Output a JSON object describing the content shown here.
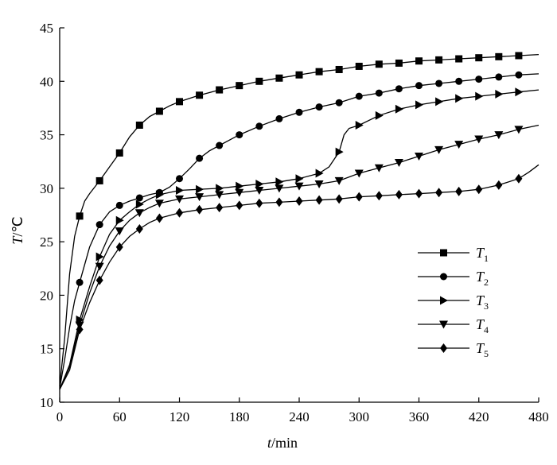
{
  "chart_data": {
    "type": "line",
    "xlabel_italic": "t",
    "xlabel_unit": "/min",
    "ylabel_italic": "T",
    "ylabel_unit": "/℃",
    "xlim": [
      0,
      480
    ],
    "ylim": [
      10,
      45
    ],
    "xticks": [
      0,
      60,
      120,
      180,
      240,
      300,
      360,
      420,
      480
    ],
    "yticks": [
      10,
      15,
      20,
      25,
      30,
      35,
      40,
      45
    ],
    "grid": false,
    "legend_position": "bottom-right",
    "series": [
      {
        "name": "T1",
        "label_main": "T",
        "label_sub": "1",
        "marker": "square",
        "line": [
          [
            0,
            11.5
          ],
          [
            5,
            16
          ],
          [
            10,
            22
          ],
          [
            15,
            25.5
          ],
          [
            20,
            27.4
          ],
          [
            25,
            28.8
          ],
          [
            30,
            29.5
          ],
          [
            40,
            30.7
          ],
          [
            50,
            32
          ],
          [
            60,
            33.3
          ],
          [
            70,
            34.8
          ],
          [
            80,
            35.9
          ],
          [
            90,
            36.7
          ],
          [
            100,
            37.2
          ],
          [
            110,
            37.7
          ],
          [
            120,
            38.1
          ],
          [
            140,
            38.7
          ],
          [
            160,
            39.2
          ],
          [
            180,
            39.6
          ],
          [
            200,
            40.0
          ],
          [
            220,
            40.3
          ],
          [
            240,
            40.6
          ],
          [
            260,
            40.9
          ],
          [
            280,
            41.1
          ],
          [
            300,
            41.4
          ],
          [
            320,
            41.6
          ],
          [
            340,
            41.7
          ],
          [
            360,
            41.9
          ],
          [
            380,
            42.0
          ],
          [
            400,
            42.1
          ],
          [
            420,
            42.2
          ],
          [
            440,
            42.3
          ],
          [
            460,
            42.4
          ],
          [
            480,
            42.5
          ]
        ],
        "markers": [
          [
            20,
            27.4
          ],
          [
            40,
            30.7
          ],
          [
            60,
            33.3
          ],
          [
            80,
            35.9
          ],
          [
            100,
            37.2
          ],
          [
            120,
            38.1
          ],
          [
            140,
            38.7
          ],
          [
            160,
            39.2
          ],
          [
            180,
            39.6
          ],
          [
            200,
            40.0
          ],
          [
            220,
            40.3
          ],
          [
            240,
            40.6
          ],
          [
            260,
            40.9
          ],
          [
            280,
            41.1
          ],
          [
            300,
            41.4
          ],
          [
            320,
            41.6
          ],
          [
            340,
            41.7
          ],
          [
            360,
            41.9
          ],
          [
            380,
            42.0
          ],
          [
            400,
            42.1
          ],
          [
            420,
            42.2
          ],
          [
            440,
            42.3
          ],
          [
            460,
            42.4
          ]
        ]
      },
      {
        "name": "T2",
        "label_main": "T",
        "label_sub": "2",
        "marker": "circle",
        "line": [
          [
            0,
            11.3
          ],
          [
            5,
            14
          ],
          [
            10,
            17
          ],
          [
            15,
            19.5
          ],
          [
            20,
            21.2
          ],
          [
            30,
            24.5
          ],
          [
            40,
            26.6
          ],
          [
            50,
            27.8
          ],
          [
            60,
            28.4
          ],
          [
            70,
            28.8
          ],
          [
            80,
            29.1
          ],
          [
            90,
            29.4
          ],
          [
            100,
            29.6
          ],
          [
            110,
            30.1
          ],
          [
            120,
            30.9
          ],
          [
            130,
            31.8
          ],
          [
            140,
            32.8
          ],
          [
            150,
            33.5
          ],
          [
            160,
            34.0
          ],
          [
            170,
            34.5
          ],
          [
            180,
            35.0
          ],
          [
            200,
            35.8
          ],
          [
            220,
            36.5
          ],
          [
            240,
            37.1
          ],
          [
            260,
            37.6
          ],
          [
            280,
            38.0
          ],
          [
            300,
            38.6
          ],
          [
            320,
            38.9
          ],
          [
            340,
            39.3
          ],
          [
            360,
            39.6
          ],
          [
            380,
            39.8
          ],
          [
            400,
            40.0
          ],
          [
            420,
            40.2
          ],
          [
            440,
            40.4
          ],
          [
            460,
            40.6
          ],
          [
            480,
            40.7
          ]
        ],
        "markers": [
          [
            20,
            21.2
          ],
          [
            40,
            26.6
          ],
          [
            60,
            28.4
          ],
          [
            80,
            29.1
          ],
          [
            100,
            29.6
          ],
          [
            120,
            30.9
          ],
          [
            140,
            32.8
          ],
          [
            160,
            34.0
          ],
          [
            180,
            35.0
          ],
          [
            200,
            35.8
          ],
          [
            220,
            36.5
          ],
          [
            240,
            37.1
          ],
          [
            260,
            37.6
          ],
          [
            280,
            38.0
          ],
          [
            300,
            38.6
          ],
          [
            320,
            38.9
          ],
          [
            340,
            39.3
          ],
          [
            360,
            39.6
          ],
          [
            380,
            39.8
          ],
          [
            400,
            40.0
          ],
          [
            420,
            40.2
          ],
          [
            440,
            40.4
          ],
          [
            460,
            40.6
          ]
        ]
      },
      {
        "name": "T3",
        "label_main": "T",
        "label_sub": "3",
        "marker": "triangle-right",
        "line": [
          [
            0,
            11.2
          ],
          [
            10,
            13.5
          ],
          [
            20,
            17.7
          ],
          [
            30,
            20.8
          ],
          [
            40,
            23.6
          ],
          [
            50,
            25.7
          ],
          [
            60,
            27.0
          ],
          [
            70,
            27.8
          ],
          [
            80,
            28.5
          ],
          [
            90,
            29.0
          ],
          [
            100,
            29.4
          ],
          [
            120,
            29.8
          ],
          [
            140,
            29.9
          ],
          [
            160,
            30.0
          ],
          [
            180,
            30.2
          ],
          [
            200,
            30.4
          ],
          [
            220,
            30.6
          ],
          [
            240,
            30.9
          ],
          [
            260,
            31.4
          ],
          [
            270,
            32.0
          ],
          [
            280,
            33.4
          ],
          [
            285,
            35.0
          ],
          [
            290,
            35.6
          ],
          [
            300,
            35.9
          ],
          [
            320,
            36.8
          ],
          [
            340,
            37.4
          ],
          [
            360,
            37.8
          ],
          [
            380,
            38.1
          ],
          [
            400,
            38.4
          ],
          [
            420,
            38.6
          ],
          [
            440,
            38.8
          ],
          [
            460,
            39.0
          ],
          [
            480,
            39.2
          ]
        ],
        "markers": [
          [
            20,
            17.7
          ],
          [
            40,
            23.6
          ],
          [
            60,
            27.0
          ],
          [
            80,
            28.5
          ],
          [
            100,
            29.4
          ],
          [
            120,
            29.8
          ],
          [
            140,
            29.9
          ],
          [
            160,
            30.0
          ],
          [
            180,
            30.2
          ],
          [
            200,
            30.4
          ],
          [
            220,
            30.6
          ],
          [
            240,
            30.9
          ],
          [
            260,
            31.4
          ],
          [
            280,
            33.4
          ],
          [
            300,
            35.9
          ],
          [
            320,
            36.8
          ],
          [
            340,
            37.4
          ],
          [
            360,
            37.8
          ],
          [
            380,
            38.1
          ],
          [
            400,
            38.4
          ],
          [
            420,
            38.6
          ],
          [
            440,
            38.8
          ],
          [
            460,
            39.0
          ]
        ]
      },
      {
        "name": "T4",
        "label_main": "T",
        "label_sub": "4",
        "marker": "triangle-down",
        "line": [
          [
            0,
            11.2
          ],
          [
            10,
            13.3
          ],
          [
            20,
            17.2
          ],
          [
            30,
            20.2
          ],
          [
            40,
            22.7
          ],
          [
            50,
            24.6
          ],
          [
            60,
            26.0
          ],
          [
            70,
            27.0
          ],
          [
            80,
            27.7
          ],
          [
            90,
            28.2
          ],
          [
            100,
            28.6
          ],
          [
            120,
            29.0
          ],
          [
            140,
            29.2
          ],
          [
            160,
            29.4
          ],
          [
            180,
            29.6
          ],
          [
            200,
            29.8
          ],
          [
            220,
            30.0
          ],
          [
            240,
            30.2
          ],
          [
            260,
            30.4
          ],
          [
            280,
            30.7
          ],
          [
            300,
            31.4
          ],
          [
            320,
            31.9
          ],
          [
            340,
            32.4
          ],
          [
            360,
            33.0
          ],
          [
            380,
            33.6
          ],
          [
            400,
            34.1
          ],
          [
            420,
            34.6
          ],
          [
            440,
            35.0
          ],
          [
            460,
            35.5
          ],
          [
            480,
            35.9
          ]
        ],
        "markers": [
          [
            20,
            17.2
          ],
          [
            40,
            22.7
          ],
          [
            60,
            26.0
          ],
          [
            80,
            27.7
          ],
          [
            100,
            28.6
          ],
          [
            120,
            29.0
          ],
          [
            140,
            29.2
          ],
          [
            160,
            29.4
          ],
          [
            180,
            29.6
          ],
          [
            200,
            29.8
          ],
          [
            220,
            30.0
          ],
          [
            240,
            30.2
          ],
          [
            260,
            30.4
          ],
          [
            280,
            30.7
          ],
          [
            300,
            31.4
          ],
          [
            320,
            31.9
          ],
          [
            340,
            32.4
          ],
          [
            360,
            33.0
          ],
          [
            380,
            33.6
          ],
          [
            400,
            34.1
          ],
          [
            420,
            34.6
          ],
          [
            440,
            35.0
          ],
          [
            460,
            35.5
          ]
        ]
      },
      {
        "name": "T5",
        "label_main": "T",
        "label_sub": "5",
        "marker": "diamond",
        "line": [
          [
            0,
            11.2
          ],
          [
            10,
            13.0
          ],
          [
            20,
            16.8
          ],
          [
            30,
            19.3
          ],
          [
            40,
            21.4
          ],
          [
            50,
            23.1
          ],
          [
            60,
            24.5
          ],
          [
            70,
            25.5
          ],
          [
            80,
            26.2
          ],
          [
            90,
            26.8
          ],
          [
            100,
            27.2
          ],
          [
            120,
            27.7
          ],
          [
            140,
            28.0
          ],
          [
            160,
            28.2
          ],
          [
            180,
            28.4
          ],
          [
            200,
            28.6
          ],
          [
            220,
            28.7
          ],
          [
            240,
            28.8
          ],
          [
            260,
            28.9
          ],
          [
            280,
            29.0
          ],
          [
            300,
            29.2
          ],
          [
            320,
            29.3
          ],
          [
            340,
            29.4
          ],
          [
            360,
            29.5
          ],
          [
            380,
            29.6
          ],
          [
            400,
            29.7
          ],
          [
            420,
            29.9
          ],
          [
            440,
            30.3
          ],
          [
            460,
            30.9
          ],
          [
            470,
            31.5
          ],
          [
            480,
            32.2
          ]
        ],
        "markers": [
          [
            20,
            16.8
          ],
          [
            40,
            21.4
          ],
          [
            60,
            24.5
          ],
          [
            80,
            26.2
          ],
          [
            100,
            27.2
          ],
          [
            120,
            27.7
          ],
          [
            140,
            28.0
          ],
          [
            160,
            28.2
          ],
          [
            180,
            28.4
          ],
          [
            200,
            28.6
          ],
          [
            220,
            28.7
          ],
          [
            240,
            28.8
          ],
          [
            260,
            28.9
          ],
          [
            280,
            29.0
          ],
          [
            300,
            29.2
          ],
          [
            320,
            29.3
          ],
          [
            340,
            29.4
          ],
          [
            360,
            29.5
          ],
          [
            380,
            29.6
          ],
          [
            400,
            29.7
          ],
          [
            420,
            29.9
          ],
          [
            440,
            30.3
          ],
          [
            460,
            30.9
          ]
        ]
      }
    ]
  }
}
